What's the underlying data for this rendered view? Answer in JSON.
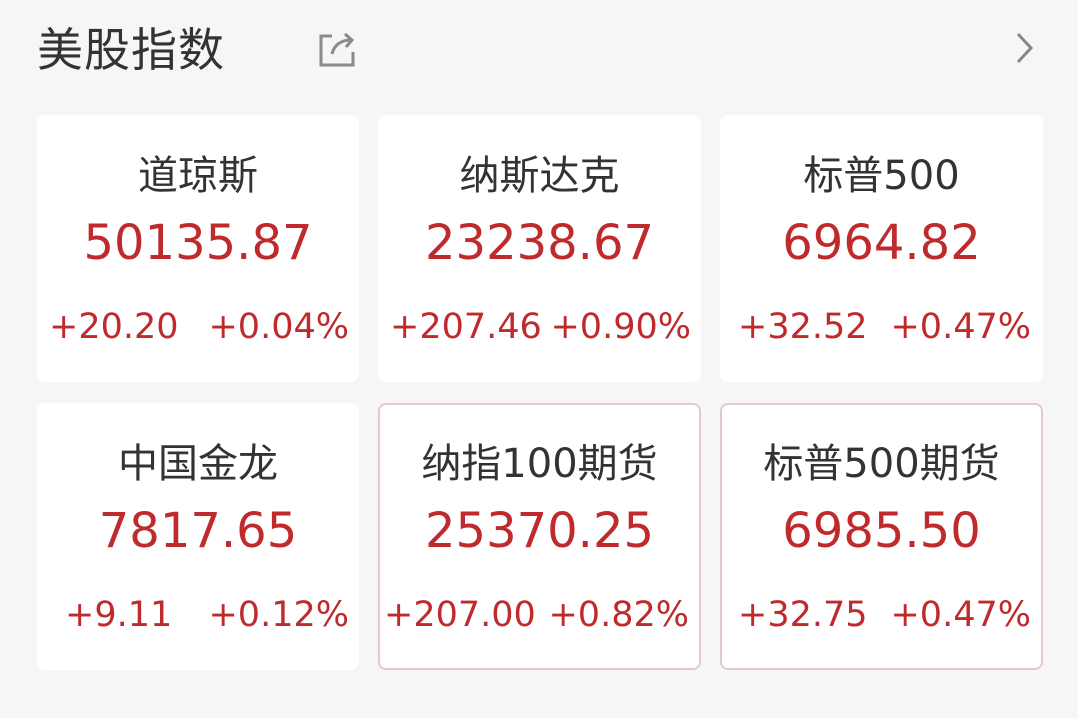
{
  "header": {
    "title": "美股指数",
    "share_icon": "share-icon",
    "more_icon": "chevron-right-icon"
  },
  "colors": {
    "up": "#bf2a2d",
    "background": "#f6f6f6",
    "card": "#ffffff"
  },
  "indices": [
    {
      "name": "道琼斯",
      "value": "50135.87",
      "change": "+20.20",
      "percent": "+0.04%"
    },
    {
      "name": "纳斯达克",
      "value": "23238.67",
      "change": "+207.46",
      "percent": "+0.90%"
    },
    {
      "name": "标普500",
      "value": "6964.82",
      "change": "+32.52",
      "percent": "+0.47%"
    },
    {
      "name": "中国金龙",
      "value": "7817.65",
      "change": "+9.11",
      "percent": "+0.12%"
    },
    {
      "name": "纳指100期货",
      "value": "25370.25",
      "change": "+207.00",
      "percent": "+0.82%"
    },
    {
      "name": "标普500期货",
      "value": "6985.50",
      "change": "+32.75",
      "percent": "+0.47%"
    }
  ]
}
